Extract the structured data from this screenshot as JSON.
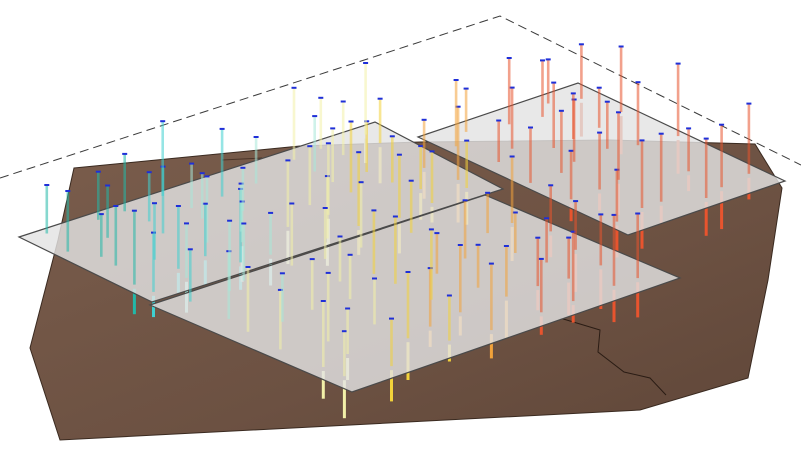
{
  "scene": {
    "colors": {
      "background": "#ffffff",
      "terrain": "#6f5444",
      "terrain_edge": "#3a2a20",
      "slab_fill": "#e3e3e3",
      "slab_edge": "#4a4a4a",
      "cap": "#1f2fd8",
      "boundary": "#3a3a3a",
      "pile_gradient": [
        "#22b8a8",
        "#3fd0d0",
        "#a8e8d8",
        "#f2f0a8",
        "#f2d23a",
        "#f2a23a",
        "#e8542e"
      ]
    },
    "elements": {
      "slab_a": "left-platform",
      "slab_b": "front-platform",
      "slab_c": "right-platform"
    }
  }
}
